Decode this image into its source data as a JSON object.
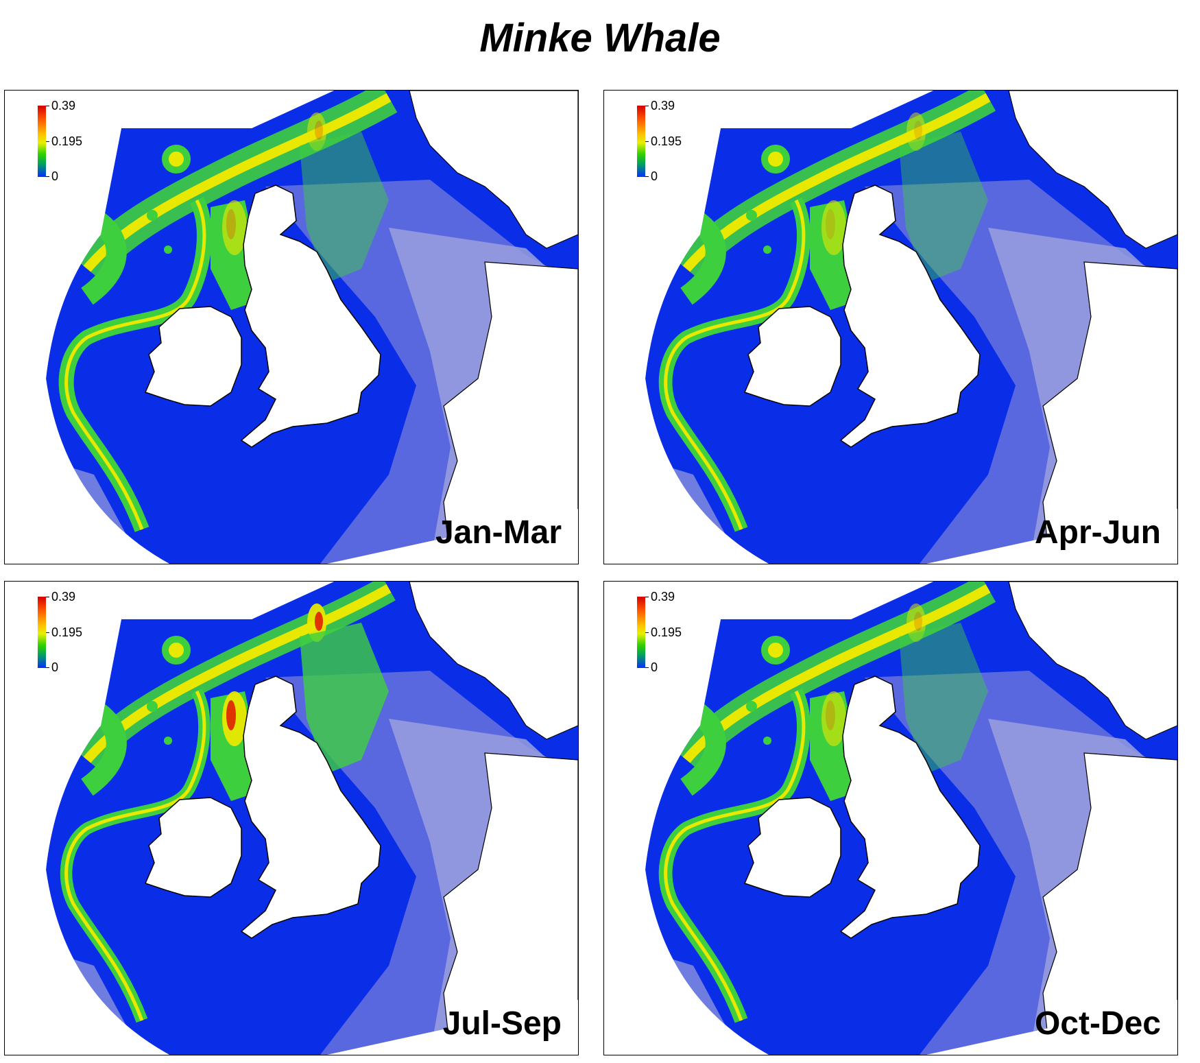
{
  "title": "Minke Whale",
  "legend": {
    "max_label": "0.39",
    "mid_label": "0.195",
    "min_label": "0",
    "colors": [
      "#d40000",
      "#ff5a00",
      "#ffc000",
      "#e6f000",
      "#30d000",
      "#00a060",
      "#0030ff"
    ]
  },
  "colors": {
    "land": "#ffffff",
    "coast": "#000000",
    "outside": "#ffffff",
    "ocean_low": "#0a2ee8",
    "shelf_low": "#5a68e0",
    "very_low": "#9aa0de",
    "mid": "#3ecf3e",
    "high": "#e8e800",
    "peak": "#e02000"
  },
  "panels": [
    {
      "season": "Jan-Mar"
    },
    {
      "season": "Apr-Jun"
    },
    {
      "season": "Jul-Sep"
    },
    {
      "season": "Oct-Dec"
    }
  ]
}
